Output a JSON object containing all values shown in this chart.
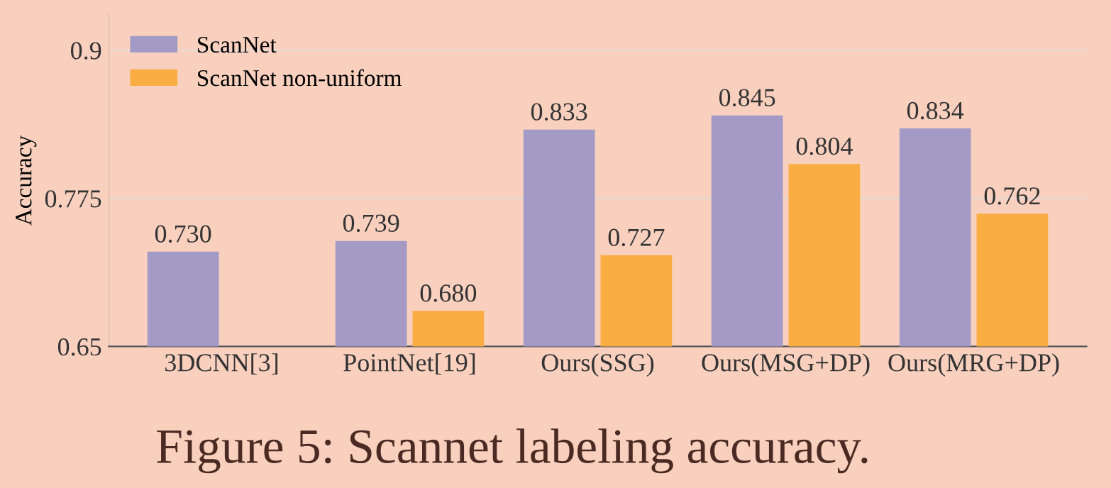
{
  "chart_data": {
    "type": "bar",
    "ylabel": "Accuracy",
    "categories": [
      "3DCNN[3]",
      "PointNet[19]",
      "Ours(SSG)",
      "Ours(MSG+DP)",
      "Ours(MRG+DP)"
    ],
    "series": [
      {
        "name": "ScanNet",
        "color": "#a39ac6",
        "values": [
          0.73,
          0.739,
          0.833,
          0.845,
          0.834
        ],
        "value_labels": [
          "0.730",
          "0.739",
          "0.833",
          "0.845",
          "0.834"
        ]
      },
      {
        "name": "ScanNet non-uniform",
        "color": "#f9ad42",
        "values": [
          null,
          0.68,
          0.727,
          0.804,
          0.762
        ],
        "value_labels": [
          null,
          "0.680",
          "0.727",
          "0.804",
          "0.762"
        ]
      }
    ],
    "ylim": [
      0.65,
      0.93
    ],
    "yticks": [
      {
        "value": 0.65,
        "label": "0.65"
      },
      {
        "value": 0.775,
        "label": "0.775"
      },
      {
        "value": 0.9,
        "label": "0.9"
      }
    ],
    "grid": "y",
    "legend": "top left",
    "annotations": [
      "Figure 5: Scannet labeling accuracy."
    ]
  }
}
